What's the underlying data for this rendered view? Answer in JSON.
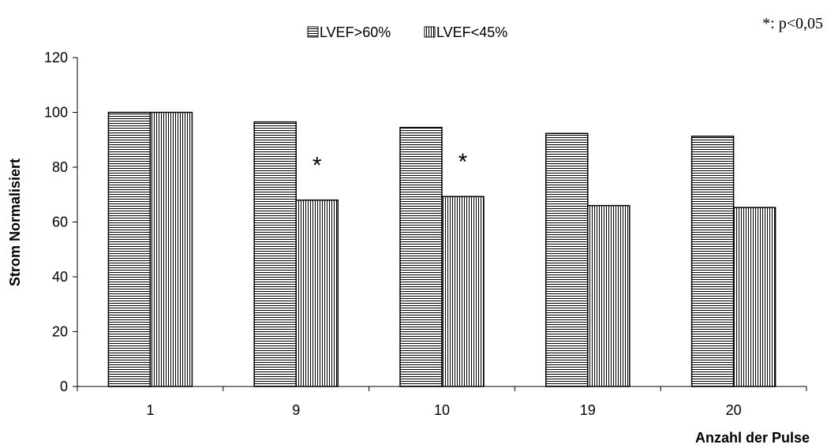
{
  "chart_data": {
    "type": "bar",
    "categories": [
      "1",
      "9",
      "10",
      "19",
      "20"
    ],
    "series": [
      {
        "name": "LVEF>60%",
        "values": [
          100,
          96.5,
          94.5,
          92.3,
          91.3
        ],
        "pattern": "horizontal-stripes"
      },
      {
        "name": "LVEF<45%",
        "values": [
          100,
          68,
          69.3,
          66,
          65.3
        ],
        "pattern": "vertical-stripes"
      }
    ],
    "xlabel": "Anzahl der Pulse",
    "ylabel": "Strom Normalisiert",
    "ylim": [
      0,
      120
    ],
    "yticks": [
      0,
      20,
      40,
      60,
      80,
      100,
      120
    ],
    "grid": false,
    "legend_position": "top-center",
    "annotations": [
      {
        "text": "*",
        "category": "9",
        "series": "LVEF<45%"
      },
      {
        "text": "*",
        "category": "10",
        "series": "LVEF<45%"
      }
    ],
    "note": "*: p<0,05",
    "colors": {
      "bar_fill": "#ffffff",
      "stripe": "#000000",
      "outline": "#000000"
    }
  }
}
